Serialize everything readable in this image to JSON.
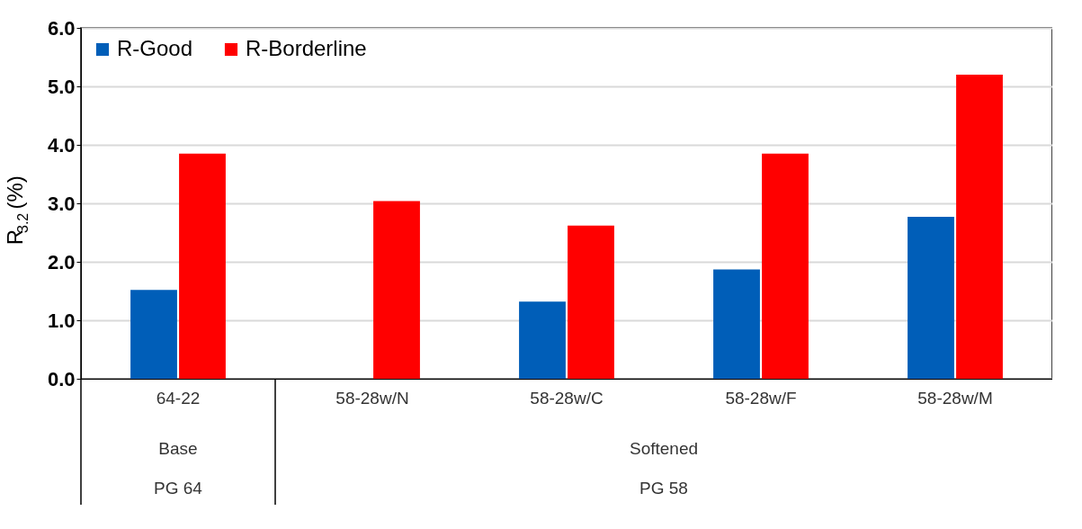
{
  "chart_data": {
    "type": "bar",
    "ylabel": "R$_{3.2}$ (%)",
    "categories": [
      "64-22",
      "58-28w/N",
      "58-28w/C",
      "58-28w/F",
      "58-28w/M"
    ],
    "series": [
      {
        "name": "R-Good",
        "color": "#005eb8",
        "values": [
          1.52,
          null,
          1.32,
          1.87,
          2.77
        ]
      },
      {
        "name": "R-Borderline",
        "color": "#ff0000",
        "values": [
          3.85,
          3.04,
          2.62,
          3.85,
          5.2
        ]
      }
    ],
    "ylim": [
      0,
      6
    ],
    "yticks": [
      {
        "value": 0,
        "label": "0.0"
      },
      {
        "value": 1,
        "label": "1.0"
      },
      {
        "value": 2,
        "label": "2.0"
      },
      {
        "value": 3,
        "label": "3.0"
      },
      {
        "value": 4,
        "label": "4.0"
      },
      {
        "value": 5,
        "label": "5.0"
      },
      {
        "value": 6,
        "label": "6.0"
      }
    ],
    "annotations": [
      "Base",
      "PG 64",
      "Softened",
      "PG 58"
    ],
    "grid": "y",
    "legend": "top left"
  }
}
